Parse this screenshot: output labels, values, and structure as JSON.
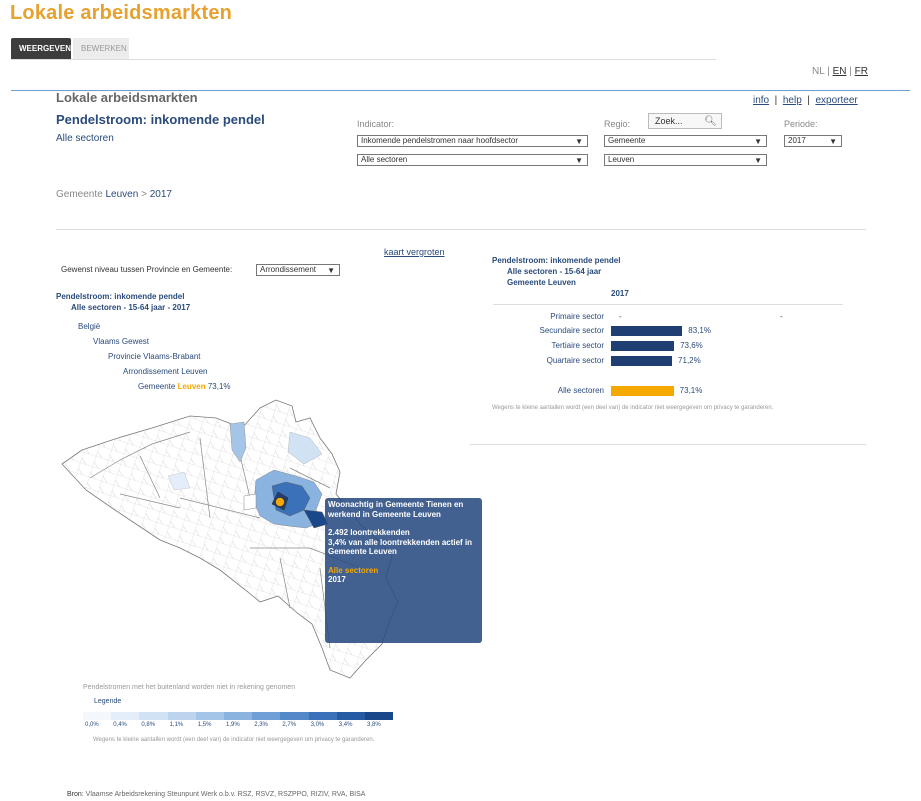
{
  "app_title": "Lokale arbeidsmarkten",
  "tabs": [
    {
      "label": "WEERGEVEN"
    },
    {
      "label": "BEWERKEN"
    }
  ],
  "languages": [
    "NL",
    "EN",
    "FR"
  ],
  "page_heading": "Lokale arbeidsmarkten",
  "top_links": [
    "info",
    "help",
    "exporteer"
  ],
  "indicator_title": "Pendelstroom: inkomende pendel",
  "sector_subtitle": "Alle sectoren",
  "filters": {
    "indicator_label": "Indicator:",
    "indicator_value": "Inkomende pendelstromen naar hoofdsector",
    "sector_value": "Alle sectoren",
    "regio_label": "Regio:",
    "search_placeholder": "Zoek...",
    "regio_type_value": "Gemeente",
    "regio_value": "Leuven",
    "periode_label": "Periode:",
    "periode_value": "2017"
  },
  "breadcrumb": {
    "prefix": "Gemeente",
    "place": "Leuven",
    "sep": ">",
    "year": "2017"
  },
  "map_section": {
    "enlarge_link": "kaart vergroten",
    "level_label": "Gewenst niveau tussen Provincie en Gemeente:",
    "level_value": "Arrondissement",
    "title_line1": "Pendelstroom: inkomende pendel",
    "title_line2": "Alle sectoren - 15-64 jaar - 2017",
    "tree": {
      "country": "België",
      "region": "Vlaams Gewest",
      "province": "Provincie Vlaams-Brabant",
      "arrondissement": "Arrondissement Leuven",
      "municipality_prefix": "Gemeente",
      "municipality": "Leuven",
      "municipality_value": "73,1%"
    },
    "footnote_abroad": "Pendelstromen met het buitenland worden niet in rekening genomen",
    "legend_title": "Legende",
    "legend_ticks": [
      "0,0%",
      "0,4%",
      "0,8%",
      "1,1%",
      "1,5%",
      "1,9%",
      "2,3%",
      "2,7%",
      "3,0%",
      "3,4%",
      "3,8%"
    ],
    "legend_colors": [
      "#f4f8fd",
      "#e3eefa",
      "#d1e2f4",
      "#bcd4ee",
      "#a4c5e8",
      "#8bb3e0",
      "#6f9fd6",
      "#5489c9",
      "#3a71b8",
      "#265aa3",
      "#1a478a"
    ],
    "privacy_note": "Wegens te kleine aantallen wordt (een deel van) de indicator niet weergegeven om privacy te garanderen."
  },
  "tooltip": {
    "line1_prefix": "Woonachtig in",
    "line1_place": "Gemeente Tienen",
    "line1_suffix": "en",
    "line2_prefix": "werkend in",
    "line2_place": "Gemeente Leuven",
    "count": "2.492 loontrekkenden",
    "share": "3,4% van alle loontrekkenden actief in",
    "share_place": "Gemeente Leuven",
    "sector": "Alle sectoren",
    "year": "2017"
  },
  "chart_section": {
    "title_line1": "Pendelstroom: inkomende pendel",
    "title_line2": "Alle sectoren - 15-64 jaar",
    "title_line3": "Gemeente Leuven",
    "year_header": "2017",
    "privacy_note": "Wegens te kleine aantallen wordt (een deel van) de indicator niet weergegeven om privacy te garanderen."
  },
  "chart_data": {
    "type": "bar",
    "orientation": "horizontal",
    "title": "Pendelstroom: inkomende pendel",
    "categories": [
      "Primaire sector",
      "Secundaire sector",
      "Tertiaire sector",
      "Quartaire sector",
      "Alle sectoren"
    ],
    "values": [
      null,
      83.1,
      73.6,
      71.2,
      73.1
    ],
    "value_labels": [
      "-",
      "83,1%",
      "73,6%",
      "71,2%",
      "73,1%"
    ],
    "colors": [
      "#1f3f73",
      "#1f3f73",
      "#1f3f73",
      "#1f3f73",
      "#f4a800"
    ],
    "xlim": [
      0,
      100
    ],
    "grid": false
  },
  "source": {
    "label": "Bron",
    "text": ": Vlaamse Arbeidsrekening Steunpunt Werk o.b.v. RSZ, RSVZ, RSZPPO, RIZIV, RVA, BISA"
  }
}
